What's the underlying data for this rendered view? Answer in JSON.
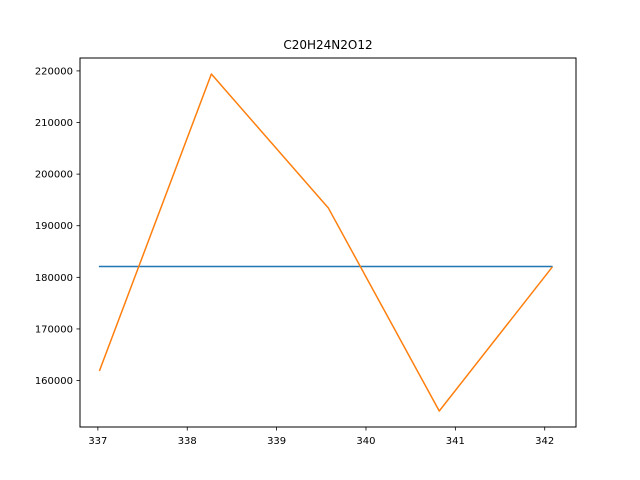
{
  "chart_data": {
    "type": "line",
    "title": "C20H24N2O12",
    "xlabel": "",
    "ylabel": "",
    "xlim": [
      336.8,
      342.35
    ],
    "ylim": [
      151000,
      222500
    ],
    "x_ticks": [
      337,
      338,
      339,
      340,
      341,
      342
    ],
    "y_ticks": [
      160000,
      170000,
      180000,
      190000,
      200000,
      210000,
      220000
    ],
    "grid": false,
    "legend": "none",
    "series": [
      {
        "color": "#1f77b4",
        "x": [
          337.02,
          342.08
        ],
        "y": [
          182100,
          182100
        ]
      },
      {
        "color": "#ff7f0e",
        "x": [
          337.02,
          338.27,
          339.58,
          340.82,
          342.08
        ],
        "y": [
          162000,
          219400,
          193400,
          154100,
          181900
        ]
      }
    ]
  }
}
